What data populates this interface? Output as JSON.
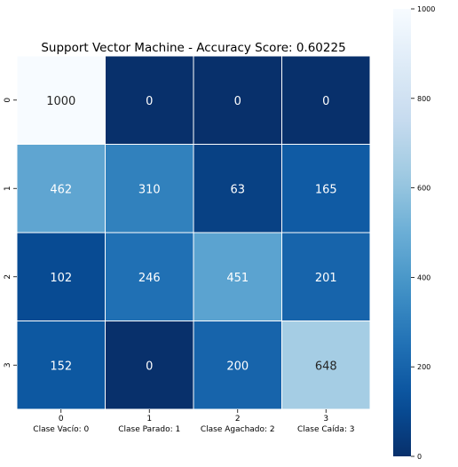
{
  "chart_data": {
    "type": "heatmap",
    "title": "Support Vector Machine - Accuracy Score: 0.60225",
    "x_ticks": [
      "0",
      "1",
      "2",
      "3"
    ],
    "x_tick_labels": [
      "Clase Vacío: 0",
      "Clase Parado: 1",
      "Clase Agachado: 2",
      "Clase Caída: 3"
    ],
    "y_ticks": [
      "0",
      "1",
      "2",
      "3"
    ],
    "matrix": [
      [
        1000,
        0,
        0,
        0
      ],
      [
        462,
        310,
        63,
        165
      ],
      [
        102,
        246,
        451,
        201
      ],
      [
        152,
        0,
        200,
        648
      ]
    ],
    "colormap": "Blues_r",
    "colorbar": {
      "range": [
        0,
        1000
      ],
      "ticks": [
        0,
        200,
        400,
        600,
        800,
        1000
      ]
    },
    "cell_text_colors": {
      "light": "#ffffff",
      "dark": "#262626"
    },
    "grid_line_color": "#ffffff"
  }
}
